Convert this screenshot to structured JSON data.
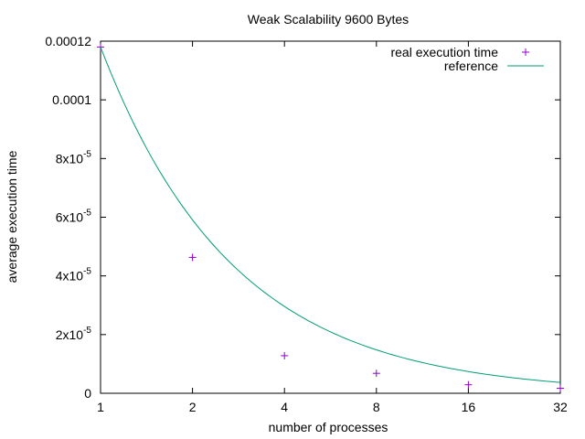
{
  "chart_data": {
    "type": "scatter",
    "title": "Weak Scalability 9600 Bytes",
    "xlabel": "number of processes",
    "ylabel": "average execution time",
    "x_scale": "log2",
    "xlim": [
      1,
      32
    ],
    "ylim": [
      0,
      0.00012
    ],
    "x_ticks": [
      {
        "value": 1,
        "label": "1"
      },
      {
        "value": 2,
        "label": "2"
      },
      {
        "value": 4,
        "label": "4"
      },
      {
        "value": 8,
        "label": "8"
      },
      {
        "value": 16,
        "label": "16"
      },
      {
        "value": 32,
        "label": "32"
      }
    ],
    "y_ticks": [
      {
        "value": 0,
        "mant": "0",
        "exp": ""
      },
      {
        "value": 2e-05,
        "mant": "2x10",
        "exp": "-5"
      },
      {
        "value": 4e-05,
        "mant": "4x10",
        "exp": "-5"
      },
      {
        "value": 6e-05,
        "mant": "6x10",
        "exp": "-5"
      },
      {
        "value": 8e-05,
        "mant": "8x10",
        "exp": "-5"
      },
      {
        "value": 0.0001,
        "mant": "0.0001",
        "exp": ""
      },
      {
        "value": 0.00012,
        "mant": "0.00012",
        "exp": ""
      }
    ],
    "legend_position": "top-right",
    "series": [
      {
        "name": "real execution time",
        "style": "points",
        "marker": "plus",
        "color": "#9400d3",
        "points": [
          {
            "x": 1,
            "y": 0.000118
          },
          {
            "x": 2,
            "y": 4.63e-05
          },
          {
            "x": 4,
            "y": 1.28e-05
          },
          {
            "x": 8,
            "y": 6.8e-06
          },
          {
            "x": 16,
            "y": 2.9e-06
          },
          {
            "x": 32,
            "y": 1.7e-06
          }
        ]
      },
      {
        "name": "reference",
        "style": "line",
        "color": "#009e73",
        "points": [
          {
            "x": 1,
            "y": 0.000118
          },
          {
            "x": 2,
            "y": 5.91e-05
          },
          {
            "x": 4,
            "y": 2.96e-05
          },
          {
            "x": 8,
            "y": 1.48e-05
          },
          {
            "x": 16,
            "y": 7.4e-06
          },
          {
            "x": 32,
            "y": 3.7e-06
          }
        ]
      }
    ],
    "grid": false
  }
}
